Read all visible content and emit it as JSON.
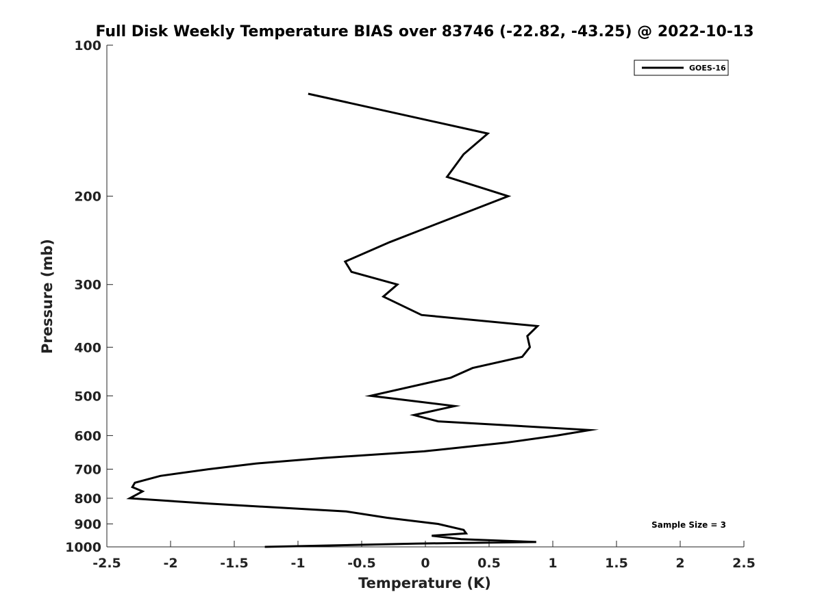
{
  "chart_data": {
    "type": "line",
    "title": "Full Disk Weekly Temperature BIAS over 83746 (-22.82, -43.25) @ 2022-10-13",
    "xlabel": "Temperature (K)",
    "ylabel": "Pressure (mb)",
    "xlim": [
      -2.5,
      2.5
    ],
    "ylim": [
      100,
      1000
    ],
    "y_scale": "log",
    "y_reversed": true,
    "x_ticks": [
      "-2.5",
      "-2",
      "-1.5",
      "-1",
      "-0.5",
      "0",
      "0.5",
      "1",
      "1.5",
      "2",
      "2.5"
    ],
    "y_ticks": [
      "100",
      "200",
      "300",
      "400",
      "500",
      "600",
      "700",
      "800",
      "900",
      "1000"
    ],
    "grid": false,
    "legend_position": "top-right",
    "annotation": "Sample Size = 3",
    "series": [
      {
        "name": "GOES-16",
        "color": "#000000",
        "points": [
          {
            "x": -0.92,
            "y": 125
          },
          {
            "x": 0.49,
            "y": 150
          },
          {
            "x": 0.3,
            "y": 165
          },
          {
            "x": 0.17,
            "y": 183
          },
          {
            "x": 0.65,
            "y": 200
          },
          {
            "x": 0.13,
            "y": 225
          },
          {
            "x": -0.28,
            "y": 247
          },
          {
            "x": -0.63,
            "y": 270
          },
          {
            "x": -0.58,
            "y": 283
          },
          {
            "x": -0.22,
            "y": 300
          },
          {
            "x": -0.33,
            "y": 317
          },
          {
            "x": -0.03,
            "y": 345
          },
          {
            "x": 0.88,
            "y": 363
          },
          {
            "x": 0.8,
            "y": 380
          },
          {
            "x": 0.82,
            "y": 400
          },
          {
            "x": 0.76,
            "y": 418
          },
          {
            "x": 0.37,
            "y": 440
          },
          {
            "x": 0.2,
            "y": 460
          },
          {
            "x": -0.43,
            "y": 500
          },
          {
            "x": 0.23,
            "y": 524
          },
          {
            "x": -0.09,
            "y": 546
          },
          {
            "x": 0.1,
            "y": 562
          },
          {
            "x": 1.29,
            "y": 585
          },
          {
            "x": 1.03,
            "y": 600
          },
          {
            "x": 0.63,
            "y": 620
          },
          {
            "x": -0.01,
            "y": 645
          },
          {
            "x": -0.8,
            "y": 665
          },
          {
            "x": -1.33,
            "y": 682
          },
          {
            "x": -1.7,
            "y": 700
          },
          {
            "x": -2.08,
            "y": 722
          },
          {
            "x": -2.28,
            "y": 745
          },
          {
            "x": -2.3,
            "y": 760
          },
          {
            "x": -2.22,
            "y": 775
          },
          {
            "x": -2.32,
            "y": 800
          },
          {
            "x": -1.7,
            "y": 820
          },
          {
            "x": -0.62,
            "y": 850
          },
          {
            "x": -0.3,
            "y": 875
          },
          {
            "x": 0.1,
            "y": 900
          },
          {
            "x": 0.3,
            "y": 925
          },
          {
            "x": 0.32,
            "y": 940
          },
          {
            "x": 0.05,
            "y": 950
          },
          {
            "x": 0.28,
            "y": 965
          },
          {
            "x": 0.87,
            "y": 978
          },
          {
            "x": -0.08,
            "y": 985
          },
          {
            "x": -1.26,
            "y": 1000
          }
        ]
      }
    ]
  }
}
